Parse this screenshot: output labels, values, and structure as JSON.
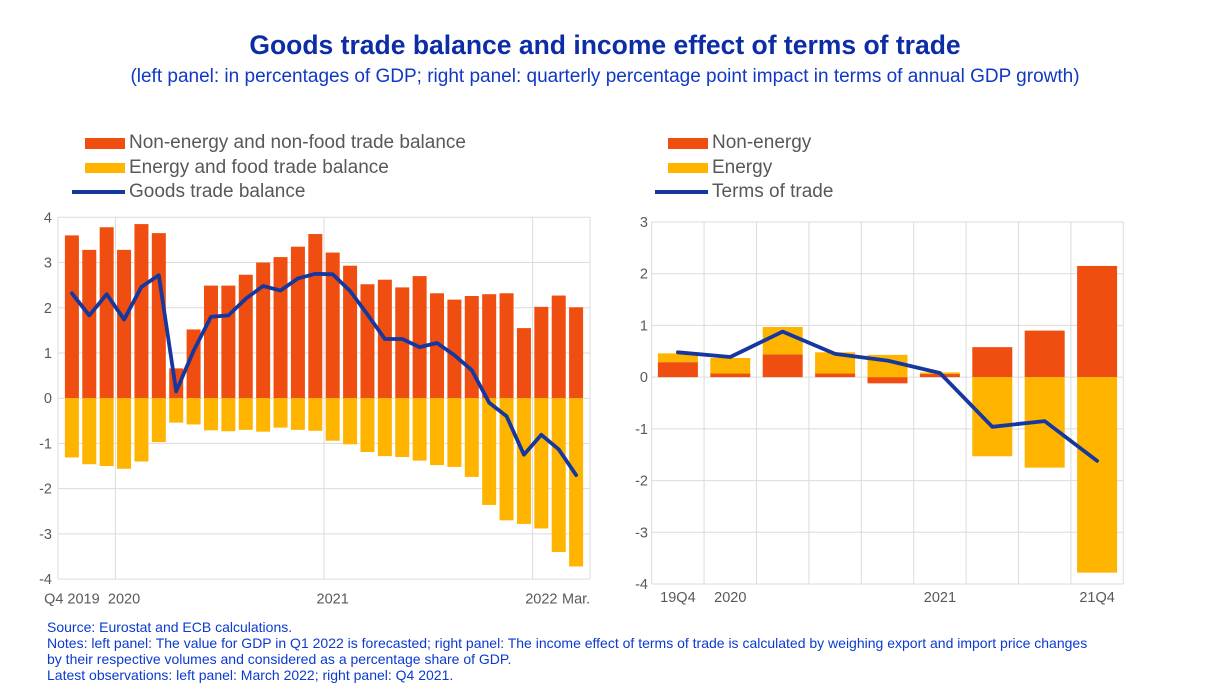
{
  "title": "Goods trade balance and income effect of terms of trade",
  "subtitle": "(left panel: in percentages of GDP; right panel: quarterly percentage point impact in terms of annual GDP growth)",
  "colors": {
    "orange": "#F04E10",
    "yellow": "#FFB400",
    "line_blue": "#16379E",
    "title_blue": "#0C2DA6",
    "subtitle_blue": "#1138C4",
    "notes_blue": "#0B3AD0",
    "tick_gray": "#595959",
    "legend_gray": "#58585A",
    "grid": "#DBDBDB"
  },
  "footer": {
    "lines": [
      "Source: Eurostat and ECB calculations.",
      "Notes: left panel: The value for GDP in Q1 2022 is forecasted; right panel: The income effect of terms of trade is calculated by weighing export and import price changes",
      "by their respective volumes and considered as a percentage share of GDP.",
      "Latest observations: left panel: March 2022; right panel: Q4 2021."
    ]
  },
  "chart_data": [
    {
      "id": "left",
      "type": "bar+line",
      "x_unit": "month",
      "x_range": "2019-10 to 2022-03",
      "ylim": [
        -4,
        4
      ],
      "ytick_step": 1,
      "x_ticks": [
        {
          "label": "Q4 2019",
          "index": 0,
          "anchor": "middle"
        },
        {
          "label": "2020",
          "index": 3,
          "anchor": "middle"
        },
        {
          "label": "2021",
          "index": 15,
          "anchor": "middle"
        },
        {
          "label": "2022",
          "index": 27,
          "anchor": "middle"
        },
        {
          "label": "Mar.",
          "index": 29,
          "anchor": "middle"
        }
      ],
      "vgrid_after": [
        2,
        14,
        26
      ],
      "series": [
        {
          "name": "Non-energy and non-food trade balance",
          "type": "bar",
          "color": "orange",
          "values": [
            3.6,
            3.28,
            3.78,
            3.28,
            3.85,
            3.65,
            0.66,
            1.52,
            2.49,
            2.49,
            2.73,
            3.0,
            3.12,
            3.35,
            3.63,
            3.22,
            2.93,
            2.52,
            2.62,
            2.45,
            2.7,
            2.32,
            2.18,
            2.26,
            2.3,
            2.32,
            1.55,
            2.02,
            2.27,
            2.01
          ]
        },
        {
          "name": "Energy and food trade balance",
          "type": "bar",
          "color": "yellow",
          "values": [
            -1.31,
            -1.46,
            -1.5,
            -1.56,
            -1.4,
            -0.97,
            -0.54,
            -0.58,
            -0.71,
            -0.73,
            -0.7,
            -0.74,
            -0.65,
            -0.7,
            -0.72,
            -0.94,
            -1.02,
            -1.19,
            -1.28,
            -1.3,
            -1.38,
            -1.48,
            -1.52,
            -1.74,
            -2.36,
            -2.7,
            -2.78,
            -2.88,
            -3.4,
            -3.72
          ]
        },
        {
          "name": "Goods trade balance",
          "type": "line",
          "color": "line_blue",
          "values": [
            2.32,
            1.83,
            2.3,
            1.74,
            2.46,
            2.72,
            0.15,
            1.05,
            1.8,
            1.83,
            2.2,
            2.48,
            2.38,
            2.65,
            2.75,
            2.74,
            2.37,
            1.85,
            1.31,
            1.31,
            1.13,
            1.22,
            0.95,
            0.62,
            -0.1,
            -0.4,
            -1.25,
            -0.81,
            -1.13,
            -1.7
          ]
        }
      ]
    },
    {
      "id": "right",
      "type": "bar+line",
      "x_unit": "quarter",
      "x_range": "2019Q4 to 2021Q4",
      "ylim": [
        -4,
        3
      ],
      "ytick_step": 1,
      "x_ticks": [
        {
          "label": "19Q4",
          "index": 0,
          "anchor": "middle"
        },
        {
          "label": "2020",
          "index": 1,
          "anchor": "middle"
        },
        {
          "label": "2021",
          "index": 5,
          "anchor": "middle"
        },
        {
          "label": "21Q4",
          "index": 8,
          "anchor": "middle"
        }
      ],
      "vgrid_after": "all",
      "series": [
        {
          "name": "Non-energy",
          "type": "bar",
          "color": "orange",
          "values": [
            0.29,
            0.07,
            0.44,
            0.07,
            -0.12,
            0.06,
            0.58,
            0.9,
            2.15
          ]
        },
        {
          "name": "Energy",
          "type": "bar",
          "color": "yellow",
          "values": [
            0.17,
            0.3,
            0.53,
            0.41,
            0.43,
            0.03,
            -1.53,
            -1.75,
            -3.78
          ]
        },
        {
          "name": "Terms of trade",
          "type": "line",
          "color": "line_blue",
          "values": [
            0.48,
            0.39,
            0.88,
            0.45,
            0.32,
            0.08,
            -0.96,
            -0.85,
            -1.62
          ]
        }
      ]
    }
  ]
}
